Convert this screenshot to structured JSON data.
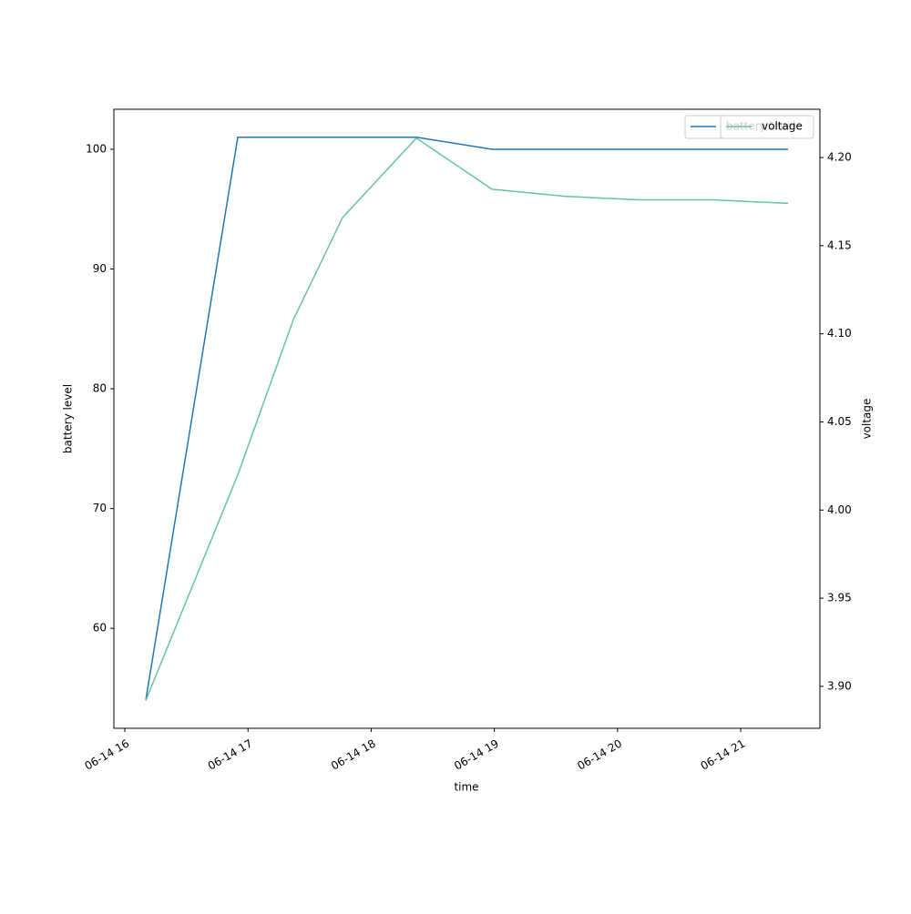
{
  "chart_data": {
    "type": "line",
    "x_label": "time",
    "y_label": "battery level",
    "y2_label": "voltage",
    "x": [
      16.17,
      16.917,
      17.368,
      17.768,
      18.367,
      18.981,
      19.572,
      20.164,
      20.771,
      21.385
    ],
    "series": [
      {
        "name": "battery level",
        "color": "#1f77b4",
        "axis": "y",
        "values": [
          54,
          101,
          101,
          101,
          101,
          100,
          100,
          100,
          100,
          100
        ]
      },
      {
        "name": "voltage",
        "color": "#66c2a5",
        "axis": "y2",
        "values": [
          3.892,
          4.02,
          4.108,
          4.166,
          4.211,
          4.182,
          4.178,
          4.176,
          4.176,
          4.174
        ]
      }
    ],
    "xlim": [
      15.911,
      21.643
    ],
    "xticks": [
      {
        "value": 16,
        "label": "06-14 16"
      },
      {
        "value": 17,
        "label": "06-14 17"
      },
      {
        "value": 18,
        "label": "06-14 18"
      },
      {
        "value": 19,
        "label": "06-14 19"
      },
      {
        "value": 20,
        "label": "06-14 20"
      },
      {
        "value": 21,
        "label": "06-14 21"
      }
    ],
    "ylim": [
      51.65,
      103.34
    ],
    "yticks": [
      60,
      70,
      80,
      90,
      100
    ],
    "y2lim": [
      3.8762,
      4.2274
    ],
    "y2ticks": [
      {
        "value": 3.9,
        "label": "3.90"
      },
      {
        "value": 3.95,
        "label": "3.95"
      },
      {
        "value": 4.0,
        "label": "4.00"
      },
      {
        "value": 4.05,
        "label": "4.05"
      },
      {
        "value": 4.1,
        "label": "4.10"
      },
      {
        "value": 4.15,
        "label": "4.15"
      },
      {
        "value": 4.2,
        "label": "4.20"
      }
    ],
    "legend": "upper right"
  }
}
